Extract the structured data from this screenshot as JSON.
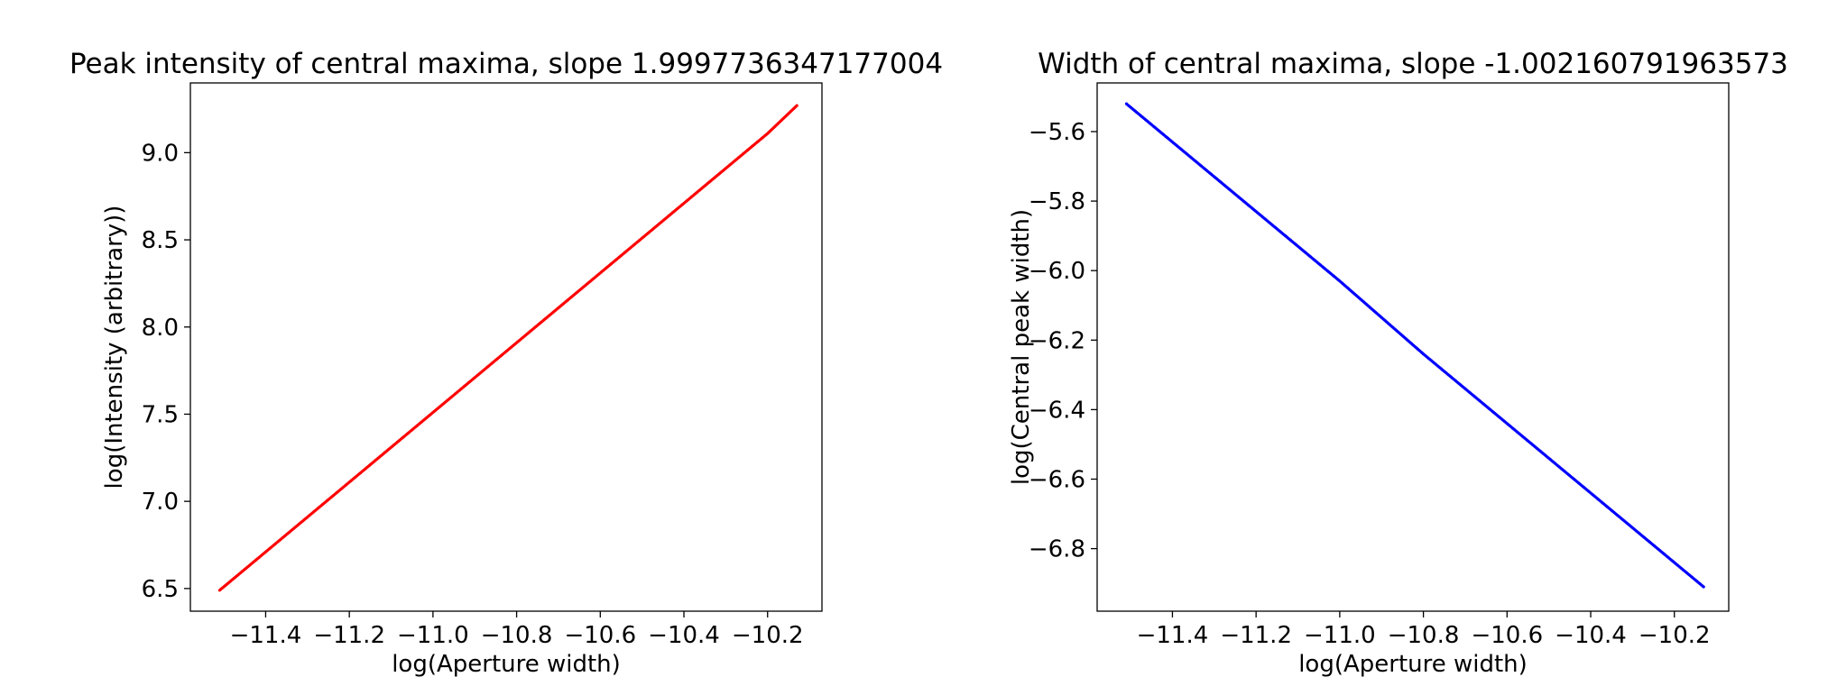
{
  "chart_data": [
    {
      "type": "scatter",
      "title": "Peak intensity of central maxima, slope 1.9997736347177004",
      "xlabel": "log(Aperture width)",
      "ylabel": "log(Intensity (arbitrary))",
      "xlim": [
        -11.58,
        -10.07
      ],
      "ylim": [
        6.37,
        9.4
      ],
      "xticks": [
        -11.4,
        -11.2,
        -11.0,
        -10.8,
        -10.6,
        -10.4,
        -10.2
      ],
      "xtick_labels": [
        "−11.4",
        "−11.2",
        "−11.0",
        "−10.8",
        "−10.6",
        "−10.4",
        "−10.2"
      ],
      "yticks": [
        6.5,
        7.0,
        7.5,
        8.0,
        8.5,
        9.0
      ],
      "ytick_labels": [
        "6.5",
        "7.0",
        "7.5",
        "8.0",
        "8.5",
        "9.0"
      ],
      "grid": false,
      "color": "#ff0000",
      "series": [
        {
          "x": [
            -11.51,
            -11.4,
            -11.2,
            -11.0,
            -10.8,
            -10.6,
            -10.4,
            -10.2,
            -10.13
          ],
          "y": [
            6.49,
            6.71,
            7.11,
            7.51,
            7.91,
            8.31,
            8.71,
            9.11,
            9.27
          ]
        }
      ]
    },
    {
      "type": "scatter",
      "title": "Width of central maxima, slope -1.002160791963573",
      "xlabel": "log(Aperture width)",
      "ylabel": "log(Central peak width)",
      "xlim": [
        -11.58,
        -10.07
      ],
      "ylim": [
        -6.98,
        -5.46
      ],
      "xticks": [
        -11.4,
        -11.2,
        -11.0,
        -10.8,
        -10.6,
        -10.4,
        -10.2
      ],
      "xtick_labels": [
        "−11.4",
        "−11.2",
        "−11.0",
        "−10.8",
        "−10.6",
        "−10.4",
        "−10.2"
      ],
      "yticks": [
        -5.6,
        -5.8,
        -6.0,
        -6.2,
        -6.4,
        -6.6,
        -6.8
      ],
      "ytick_labels": [
        "−5.6",
        "−5.8",
        "−6.0",
        "−6.2",
        "−6.4",
        "−6.6",
        "−6.8"
      ],
      "grid": false,
      "color": "#0000ff",
      "series": [
        {
          "x": [
            -11.51,
            -11.4,
            -11.2,
            -11.0,
            -10.8,
            -10.6,
            -10.4,
            -10.2,
            -10.13
          ],
          "y": [
            -5.52,
            -5.63,
            -5.83,
            -6.03,
            -6.24,
            -6.44,
            -6.64,
            -6.84,
            -6.91
          ]
        }
      ]
    }
  ]
}
